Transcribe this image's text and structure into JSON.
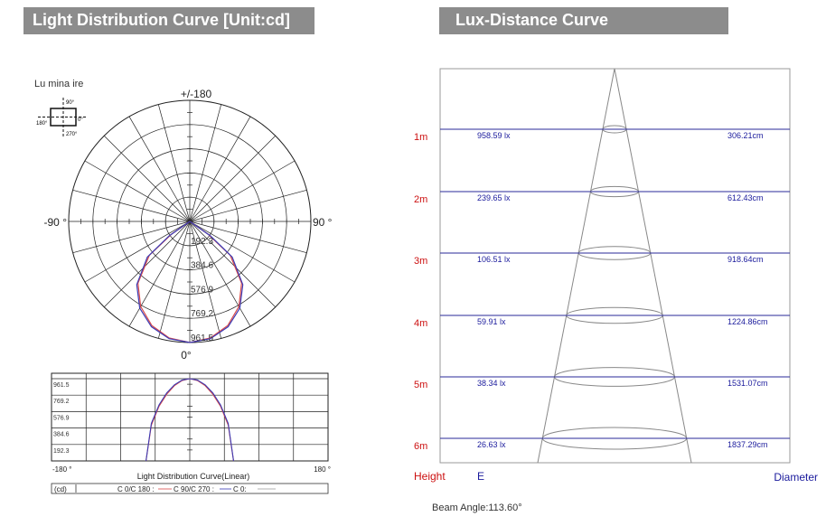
{
  "left_panel": {
    "title": "Light Distribution Curve [Unit:cd]",
    "luminaire_label": "Lu mina ire",
    "icon_labels": {
      "top": "90°",
      "left": "180°",
      "right": "0°",
      "bottom": "270°"
    },
    "polar_labels": {
      "top": "+/-180",
      "left": "-90 °",
      "right": "90 °",
      "bottom": "0°"
    },
    "ring_labels": [
      "192.3",
      "384.6",
      "576.9",
      "769.2",
      "961.5"
    ],
    "linear_chart": {
      "y_tick_labels": [
        "961.5",
        "769.2",
        "576.9",
        "384.6",
        "192.3"
      ],
      "x_left": "-180 °",
      "x_right": "180 °",
      "caption": "Light Distribution Curve(Linear)",
      "legend": {
        "unit": "(cd)",
        "c0": "C 0/C 180 :",
        "c90": "C 90/C 270 :",
        "c0b": "C 0:"
      }
    }
  },
  "right_panel": {
    "title": "Lux-Distance  Curve",
    "height_header": "Height",
    "e_header": "E",
    "diameter_header": "Diameter",
    "beam_angle_text": "Beam Angle:113.60°"
  },
  "colors": {
    "banner": "#8c8c8c",
    "c0_curve": "#d94a4a",
    "c90_curve": "#3b3bb5",
    "height_label": "#cc1010",
    "header_blue": "#1a1a9c",
    "row_line": "#2a2a9a"
  },
  "chart_data": [
    {
      "type": "polar",
      "title": "Light Distribution Curve [Unit:cd]",
      "unit": "cd",
      "r_max": 961.5,
      "ring_values": [
        192.3,
        384.6,
        576.9,
        769.2,
        961.5
      ],
      "series": [
        {
          "name": "C 0/C 180",
          "color": "#d94a4a",
          "angles_deg": [
            0,
            10,
            20,
            30,
            40,
            50,
            55,
            57
          ],
          "values": [
            961.5,
            940,
            880,
            780,
            640,
            420,
            180,
            0
          ]
        },
        {
          "name": "C 90/C 270",
          "color": "#3b3bb5",
          "angles_deg": [
            0,
            10,
            20,
            30,
            40,
            50,
            55,
            57
          ],
          "values": [
            961.5,
            945,
            890,
            795,
            655,
            440,
            200,
            0
          ]
        }
      ]
    },
    {
      "type": "line",
      "title": "Light Distribution Curve(Linear)",
      "x_range": [
        -180,
        180
      ],
      "y_range": [
        0,
        961.5
      ],
      "y_ticks": [
        192.3,
        384.6,
        576.9,
        769.2,
        961.5
      ],
      "series": [
        {
          "name": "C 0/C 180",
          "color": "#d94a4a",
          "x": [
            -57,
            -50,
            -40,
            -30,
            -20,
            -10,
            0,
            10,
            20,
            30,
            40,
            50,
            57
          ],
          "y": [
            0,
            420,
            640,
            780,
            880,
            940,
            961.5,
            940,
            880,
            780,
            640,
            420,
            0
          ]
        },
        {
          "name": "C 90/C 270",
          "color": "#3b3bb5",
          "x": [
            -57,
            -50,
            -40,
            -30,
            -20,
            -10,
            0,
            10,
            20,
            30,
            40,
            50,
            57
          ],
          "y": [
            0,
            440,
            655,
            795,
            890,
            945,
            961.5,
            945,
            890,
            795,
            655,
            440,
            0
          ]
        }
      ]
    },
    {
      "type": "table",
      "title": "Lux-Distance  Curve",
      "beam_angle_deg": 113.6,
      "rows": [
        {
          "height": "1m",
          "lux": "958.59 lx",
          "diameter": "306.21cm"
        },
        {
          "height": "2m",
          "lux": "239.65 lx",
          "diameter": "612.43cm"
        },
        {
          "height": "3m",
          "lux": "106.51 lx",
          "diameter": "918.64cm"
        },
        {
          "height": "4m",
          "lux": "59.91 lx",
          "diameter": "1224.86cm"
        },
        {
          "height": "5m",
          "lux": "38.34 lx",
          "diameter": "1531.07cm"
        },
        {
          "height": "6m",
          "lux": "26.63 lx",
          "diameter": "1837.29cm"
        }
      ]
    }
  ]
}
